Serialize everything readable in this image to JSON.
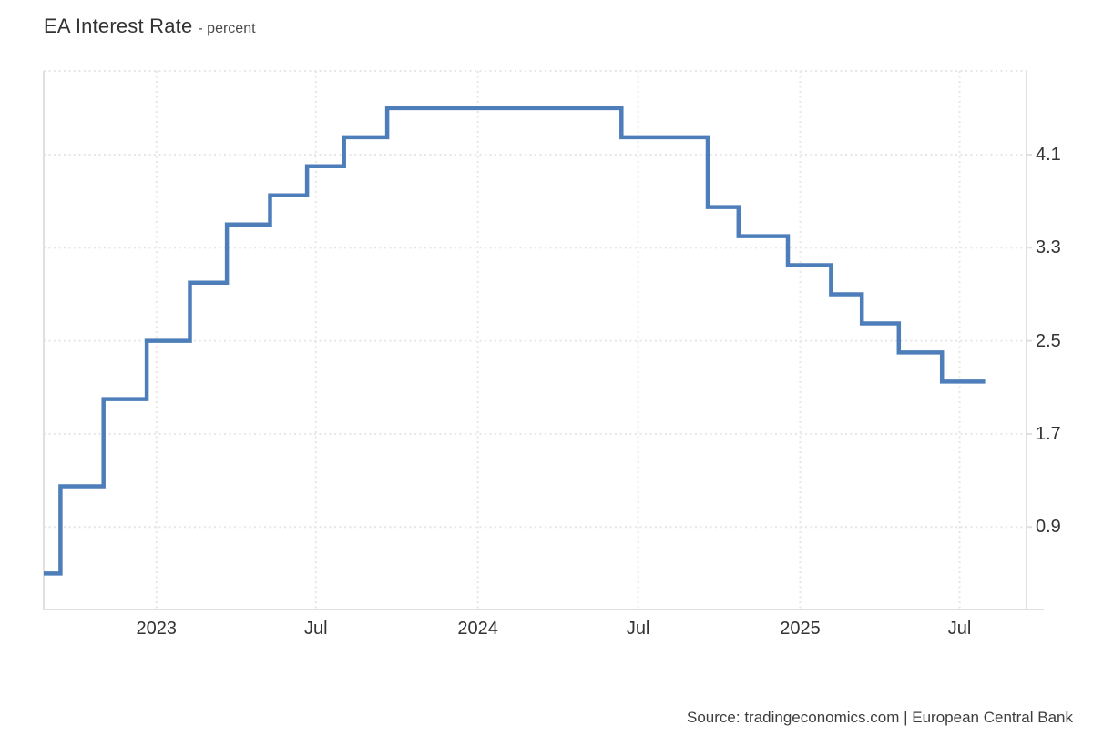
{
  "header": {
    "title": "EA Interest Rate",
    "subtitle": "- percent"
  },
  "footer": {
    "source": "Source: tradingeconomics.com | European Central Bank"
  },
  "colors": {
    "line": "#4d7eba",
    "grid": "#e6e6e6",
    "axis": "#e0e0e0",
    "text": "#333333"
  },
  "chart_data": {
    "type": "line",
    "step": true,
    "title": "EA Interest Rate",
    "ylabel": "percent",
    "legend": "none",
    "grid": "dotted, horizontal and vertical",
    "y_axis": {
      "side": "right",
      "ticks": [
        4.1,
        3.3,
        2.5,
        1.7,
        0.9
      ],
      "range": [
        0.19,
        4.82
      ]
    },
    "x_axis": {
      "range": [
        "2022-08-26",
        "2025-09-15"
      ],
      "ticks": [
        {
          "date": "2023-01-01",
          "label": "2023"
        },
        {
          "date": "2023-07-01",
          "label": "Jul"
        },
        {
          "date": "2024-01-01",
          "label": "2024"
        },
        {
          "date": "2024-07-01",
          "label": "Jul"
        },
        {
          "date": "2025-01-01",
          "label": "2025"
        },
        {
          "date": "2025-07-01",
          "label": "Jul"
        }
      ]
    },
    "series": [
      {
        "name": "EA Interest Rate",
        "color": "#4d7eba",
        "points": [
          {
            "date": "2022-08-26",
            "value": 0.5
          },
          {
            "date": "2022-09-14",
            "value": 1.25
          },
          {
            "date": "2022-11-02",
            "value": 2.0
          },
          {
            "date": "2022-12-21",
            "value": 2.5
          },
          {
            "date": "2023-02-08",
            "value": 3.0
          },
          {
            "date": "2023-03-22",
            "value": 3.5
          },
          {
            "date": "2023-05-10",
            "value": 3.75
          },
          {
            "date": "2023-06-21",
            "value": 4.0
          },
          {
            "date": "2023-08-02",
            "value": 4.25
          },
          {
            "date": "2023-09-20",
            "value": 4.5
          },
          {
            "date": "2024-06-12",
            "value": 4.25
          },
          {
            "date": "2024-09-18",
            "value": 3.65
          },
          {
            "date": "2024-10-23",
            "value": 3.4
          },
          {
            "date": "2024-12-18",
            "value": 3.15
          },
          {
            "date": "2025-02-05",
            "value": 2.9
          },
          {
            "date": "2025-03-12",
            "value": 2.65
          },
          {
            "date": "2025-04-23",
            "value": 2.4
          },
          {
            "date": "2025-06-11",
            "value": 2.15
          },
          {
            "date": "2025-07-30",
            "value": 2.15
          }
        ]
      }
    ]
  }
}
